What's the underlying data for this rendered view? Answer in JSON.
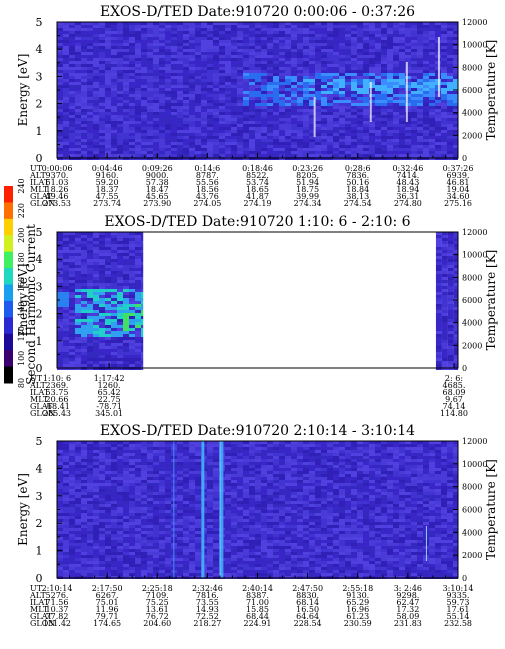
{
  "colorbar": {
    "label": "Second Harmonic Current",
    "ticks": [
      "80",
      "100",
      "120",
      "140",
      "160",
      "180",
      "200",
      "220",
      "240"
    ],
    "colors": [
      "#000000",
      "#3a0070",
      "#1d0a9a",
      "#2a2ad0",
      "#1e5cf0",
      "#18a0f0",
      "#20d8c0",
      "#40f060",
      "#d0f020",
      "#ffd000",
      "#ff7000",
      "#ff2000"
    ]
  },
  "chart_data": [
    {
      "type": "heatmap",
      "title": "EXOS-D/TED  Date:910720  0:00:06 - 0:37:26",
      "ylabel": "Energy [eV]",
      "y2label": "Temperature [K]",
      "ylim": [
        0,
        5
      ],
      "y2lim": [
        0,
        12000
      ],
      "yticks": [
        "0",
        "1",
        "2",
        "3",
        "4",
        "5"
      ],
      "y2ticks": [
        "0",
        "2000",
        "4000",
        "6000",
        "8000",
        "10000",
        "12000"
      ],
      "data_coverage": [
        [
          0.0,
          1.0
        ]
      ],
      "ephemeris_labels": [
        "UT",
        "ALT",
        "ILAT",
        "MLT",
        "GLAT",
        "GLON"
      ],
      "ephemeris_columns": [
        [
          "0:00:06",
          "9370.",
          "61.03",
          "18.26",
          "49.46",
          "273.53"
        ],
        [
          "0:04:46",
          "9160.",
          "59.20",
          "18.37",
          "47.55",
          "273.74"
        ],
        [
          "0:09:26",
          "9000.",
          "57.38",
          "18.47",
          "45.65",
          "273.90"
        ],
        [
          "0:14:6",
          "8787.",
          "55.56",
          "18.56",
          "43.76",
          "274.05"
        ],
        [
          "0:18:46",
          "8522.",
          "53.74",
          "18.65",
          "41.87",
          "274.19"
        ],
        [
          "0:23:26",
          "8205.",
          "51.94",
          "18.75",
          "39.99",
          "274.34"
        ],
        [
          "0:28:6",
          "7836.",
          "50.16",
          "18.84",
          "38.13",
          "274.54"
        ],
        [
          "0:32:46",
          "7414.",
          "48.43",
          "18.94",
          "36.31",
          "274.80"
        ],
        [
          "0:37:26",
          "6939.",
          "46.81",
          "19.04",
          "34.60",
          "275.16"
        ]
      ]
    },
    {
      "type": "heatmap",
      "title": "EXOS-D/TED  Date:910720  1:10: 6 - 2:10: 6",
      "ylabel": "Energy [eV]",
      "y2label": "Temperature [K]",
      "ylim": [
        0,
        5
      ],
      "y2lim": [
        0,
        12000
      ],
      "yticks": [
        "0",
        "1",
        "2",
        "3",
        "4",
        "5"
      ],
      "y2ticks": [
        "0",
        "2000",
        "4000",
        "6000",
        "8000",
        "10000",
        "12000"
      ],
      "data_coverage": [
        [
          0.0,
          0.215
        ],
        [
          0.945,
          1.0
        ]
      ],
      "ephemeris_labels": [
        "UT",
        "ALT",
        "ILAT",
        "MLT",
        "GLAT",
        "GLON"
      ],
      "ephemeris_columns": [
        [
          "1:10: 6",
          "2369.",
          "53.75",
          "20.66",
          "-68.41",
          "285.43"
        ],
        [
          "1:17:42",
          "1260.",
          "65.42",
          "22.75",
          "-78.71",
          "345.01"
        ],
        [
          "2: 6:",
          "4685.",
          "68.09",
          "9.67",
          "74.14",
          "114.80"
        ]
      ],
      "ephemeris_positions": [
        0.0,
        0.13,
        0.99
      ]
    },
    {
      "type": "heatmap",
      "title": "EXOS-D/TED  Date:910720  2:10:14 - 3:10:14",
      "ylabel": "Energy [eV]",
      "y2label": "Temperature [K]",
      "ylim": [
        0,
        5
      ],
      "y2lim": [
        0,
        12000
      ],
      "yticks": [
        "0",
        "1",
        "2",
        "3",
        "4",
        "5"
      ],
      "y2ticks": [
        "0",
        "2000",
        "4000",
        "6000",
        "8000",
        "10000",
        "12000"
      ],
      "data_coverage": [
        [
          0.0,
          1.0
        ]
      ],
      "ephemeris_labels": [
        "UT",
        "ALT",
        "ILAT",
        "MLT",
        "GLAT",
        "GLON"
      ],
      "ephemeris_columns": [
        [
          "2:10:14",
          "5276.",
          "71.56",
          "10.37",
          "77.82",
          "131.42"
        ],
        [
          "2:17:50",
          "6267.",
          "75.01",
          "11.96",
          "79.71",
          "174.65"
        ],
        [
          "2:25:18",
          "7109.",
          "75.25",
          "13.61",
          "76.72",
          "204.60"
        ],
        [
          "2:32:46",
          "7816.",
          "73.55",
          "14.93",
          "72.52",
          "218.27"
        ],
        [
          "2:40:14",
          "8387.",
          "71.00",
          "15.85",
          "68.44",
          "224.91"
        ],
        [
          "2:47:50",
          "8830.",
          "68.14",
          "16.50",
          "64.64",
          "228.54"
        ],
        [
          "2:55:18",
          "9130.",
          "65.29",
          "16.96",
          "61.23",
          "230.59"
        ],
        [
          "3: 2:46",
          "9298.",
          "62.47",
          "17.32",
          "58.09",
          "231.83"
        ],
        [
          "3:10:14",
          "9335.",
          "59.73",
          "17.61",
          "55.14",
          "232.58"
        ]
      ]
    }
  ]
}
